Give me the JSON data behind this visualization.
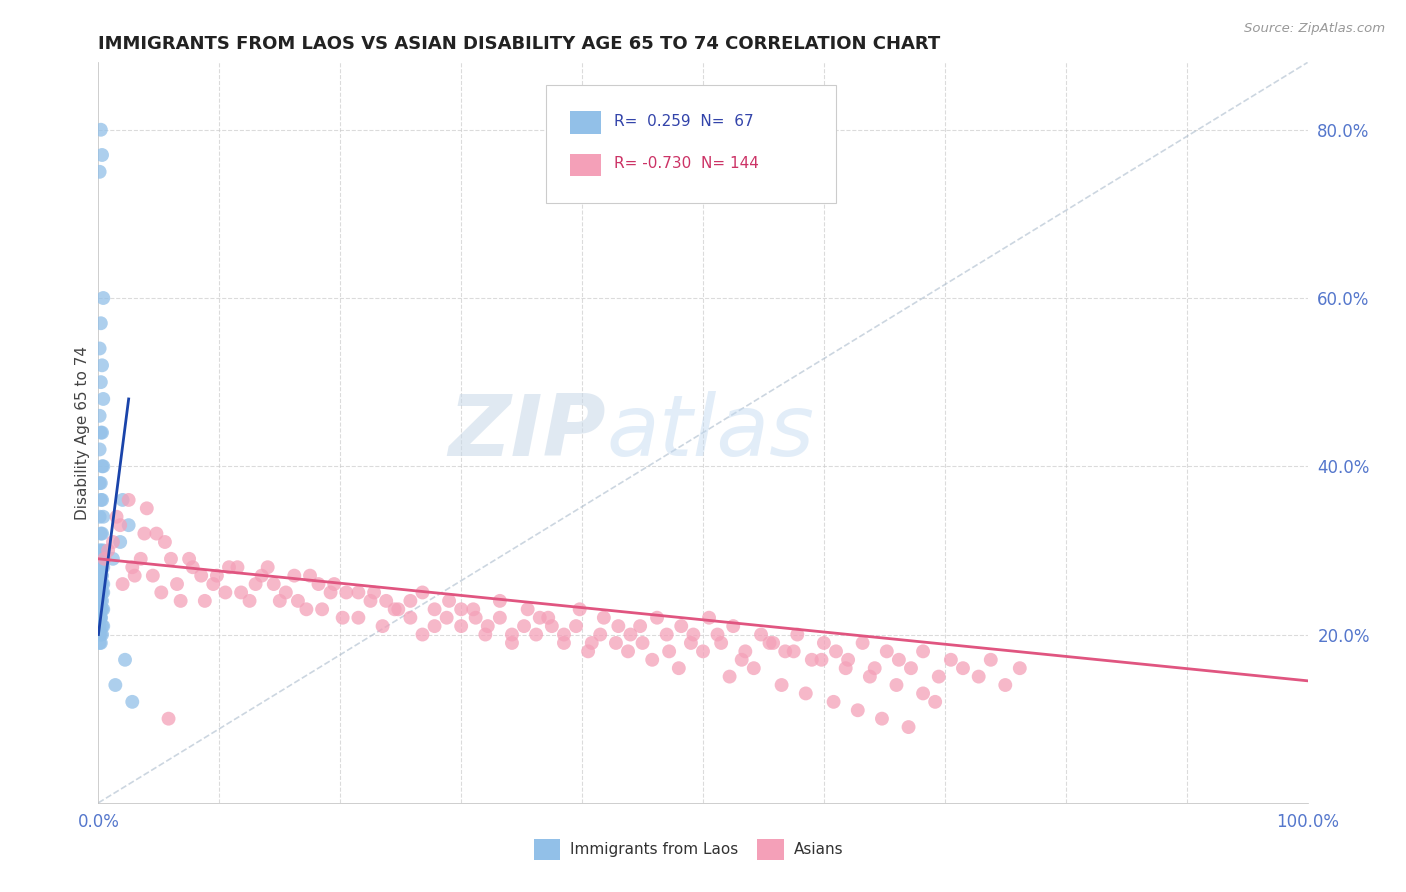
{
  "title": "IMMIGRANTS FROM LAOS VS ASIAN DISABILITY AGE 65 TO 74 CORRELATION CHART",
  "source": "Source: ZipAtlas.com",
  "ylabel": "Disability Age 65 to 74",
  "r1": 0.259,
  "n1": 67,
  "r2": -0.73,
  "n2": 144,
  "color_blue": "#92c0e8",
  "color_pink": "#f4a0b8",
  "line_color_blue": "#1a44aa",
  "line_color_pink": "#e05580",
  "line_color_dashed": "#aabbcc",
  "background_color": "#ffffff",
  "grid_color": "#cccccc",
  "legend_label1": "Immigrants from Laos",
  "legend_label2": "Asians",
  "blue_points_x": [
    0.002,
    0.003,
    0.001,
    0.004,
    0.002,
    0.001,
    0.003,
    0.002,
    0.004,
    0.001,
    0.003,
    0.002,
    0.001,
    0.004,
    0.003,
    0.002,
    0.001,
    0.003,
    0.002,
    0.004,
    0.001,
    0.002,
    0.003,
    0.001,
    0.004,
    0.002,
    0.003,
    0.001,
    0.002,
    0.004,
    0.001,
    0.003,
    0.002,
    0.001,
    0.004,
    0.003,
    0.002,
    0.001,
    0.003,
    0.002,
    0.001,
    0.004,
    0.002,
    0.003,
    0.001,
    0.004,
    0.002,
    0.003,
    0.001,
    0.002,
    0.001,
    0.002,
    0.003,
    0.001,
    0.004,
    0.002,
    0.001,
    0.003,
    0.002,
    0.001,
    0.02,
    0.025,
    0.018,
    0.014,
    0.022,
    0.012,
    0.028
  ],
  "blue_points_y": [
    0.8,
    0.77,
    0.75,
    0.6,
    0.57,
    0.54,
    0.52,
    0.5,
    0.48,
    0.46,
    0.44,
    0.44,
    0.42,
    0.4,
    0.4,
    0.38,
    0.38,
    0.36,
    0.36,
    0.34,
    0.34,
    0.32,
    0.32,
    0.3,
    0.3,
    0.3,
    0.29,
    0.29,
    0.28,
    0.28,
    0.28,
    0.27,
    0.27,
    0.27,
    0.26,
    0.26,
    0.26,
    0.26,
    0.25,
    0.25,
    0.25,
    0.25,
    0.24,
    0.24,
    0.24,
    0.23,
    0.23,
    0.23,
    0.23,
    0.22,
    0.22,
    0.22,
    0.21,
    0.21,
    0.21,
    0.2,
    0.2,
    0.2,
    0.19,
    0.19,
    0.36,
    0.33,
    0.31,
    0.14,
    0.17,
    0.29,
    0.12
  ],
  "pink_points_x": [
    0.005,
    0.012,
    0.02,
    0.028,
    0.038,
    0.045,
    0.052,
    0.06,
    0.068,
    0.078,
    0.085,
    0.095,
    0.105,
    0.115,
    0.125,
    0.135,
    0.145,
    0.155,
    0.165,
    0.175,
    0.185,
    0.195,
    0.205,
    0.215,
    0.228,
    0.238,
    0.248,
    0.258,
    0.268,
    0.278,
    0.29,
    0.3,
    0.312,
    0.322,
    0.332,
    0.342,
    0.355,
    0.365,
    0.375,
    0.385,
    0.398,
    0.408,
    0.418,
    0.43,
    0.44,
    0.45,
    0.462,
    0.472,
    0.482,
    0.492,
    0.505,
    0.515,
    0.525,
    0.535,
    0.548,
    0.558,
    0.568,
    0.578,
    0.59,
    0.6,
    0.61,
    0.62,
    0.632,
    0.642,
    0.652,
    0.662,
    0.672,
    0.682,
    0.695,
    0.705,
    0.715,
    0.728,
    0.738,
    0.75,
    0.762,
    0.008,
    0.018,
    0.03,
    0.04,
    0.055,
    0.065,
    0.075,
    0.088,
    0.098,
    0.108,
    0.118,
    0.13,
    0.14,
    0.15,
    0.162,
    0.172,
    0.182,
    0.192,
    0.202,
    0.215,
    0.225,
    0.235,
    0.245,
    0.258,
    0.268,
    0.278,
    0.288,
    0.3,
    0.31,
    0.32,
    0.332,
    0.342,
    0.352,
    0.362,
    0.372,
    0.385,
    0.395,
    0.405,
    0.415,
    0.428,
    0.438,
    0.448,
    0.458,
    0.47,
    0.48,
    0.49,
    0.5,
    0.512,
    0.522,
    0.532,
    0.542,
    0.555,
    0.565,
    0.575,
    0.585,
    0.598,
    0.608,
    0.618,
    0.628,
    0.638,
    0.648,
    0.66,
    0.67,
    0.682,
    0.692,
    0.015,
    0.025,
    0.035,
    0.048,
    0.058
  ],
  "pink_points_y": [
    0.29,
    0.31,
    0.26,
    0.28,
    0.32,
    0.27,
    0.25,
    0.29,
    0.24,
    0.28,
    0.27,
    0.26,
    0.25,
    0.28,
    0.24,
    0.27,
    0.26,
    0.25,
    0.24,
    0.27,
    0.23,
    0.26,
    0.25,
    0.22,
    0.25,
    0.24,
    0.23,
    0.22,
    0.25,
    0.21,
    0.24,
    0.23,
    0.22,
    0.21,
    0.24,
    0.2,
    0.23,
    0.22,
    0.21,
    0.2,
    0.23,
    0.19,
    0.22,
    0.21,
    0.2,
    0.19,
    0.22,
    0.18,
    0.21,
    0.2,
    0.22,
    0.19,
    0.21,
    0.18,
    0.2,
    0.19,
    0.18,
    0.2,
    0.17,
    0.19,
    0.18,
    0.17,
    0.19,
    0.16,
    0.18,
    0.17,
    0.16,
    0.18,
    0.15,
    0.17,
    0.16,
    0.15,
    0.17,
    0.14,
    0.16,
    0.3,
    0.33,
    0.27,
    0.35,
    0.31,
    0.26,
    0.29,
    0.24,
    0.27,
    0.28,
    0.25,
    0.26,
    0.28,
    0.24,
    0.27,
    0.23,
    0.26,
    0.25,
    0.22,
    0.25,
    0.24,
    0.21,
    0.23,
    0.24,
    0.2,
    0.23,
    0.22,
    0.21,
    0.23,
    0.2,
    0.22,
    0.19,
    0.21,
    0.2,
    0.22,
    0.19,
    0.21,
    0.18,
    0.2,
    0.19,
    0.18,
    0.21,
    0.17,
    0.2,
    0.16,
    0.19,
    0.18,
    0.2,
    0.15,
    0.17,
    0.16,
    0.19,
    0.14,
    0.18,
    0.13,
    0.17,
    0.12,
    0.16,
    0.11,
    0.15,
    0.1,
    0.14,
    0.09,
    0.13,
    0.12,
    0.34,
    0.36,
    0.29,
    0.32,
    0.1
  ]
}
